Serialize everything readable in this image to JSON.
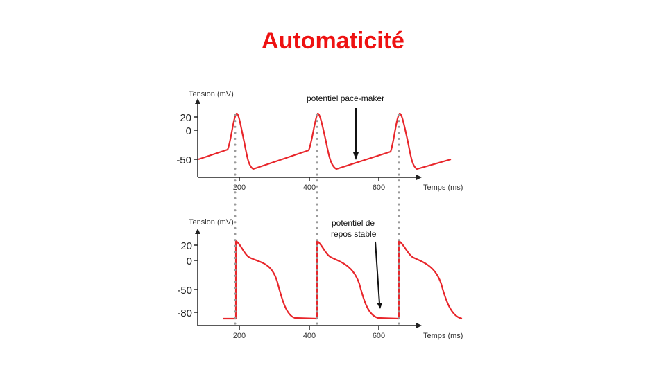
{
  "title": "Automaticité",
  "top_panel": {
    "y_axis_title": "Tension (mV)",
    "x_axis_title": "Temps (ms)",
    "y_ticks": [
      "20",
      "0",
      "-50"
    ],
    "x_ticks": [
      "200",
      "400",
      "600"
    ],
    "annotation": "potentiel pace-maker"
  },
  "bottom_panel": {
    "y_axis_title": "Tension (mV)",
    "x_axis_title": "Temps (ms)",
    "y_ticks": [
      "20",
      "0",
      "-50",
      "-80"
    ],
    "x_ticks": [
      "200",
      "400",
      "600"
    ],
    "annotation_line1": "potentiel de",
    "annotation_line2": "repos stable"
  },
  "colors": {
    "title": "#ee1111",
    "curve": "#e8262b",
    "guide_dots": "#9a9a9a"
  }
}
